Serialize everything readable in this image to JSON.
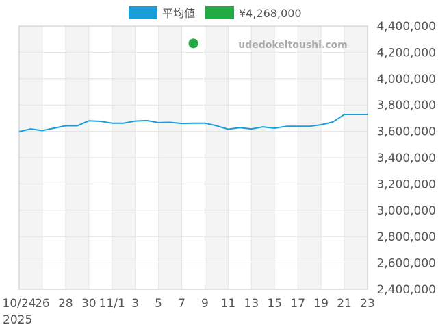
{
  "chart_data": {
    "type": "line",
    "title": "",
    "xlabel": "",
    "ylabel": "",
    "watermark": "udedokeitoushi.com",
    "legend_position": "top-center",
    "grid": true,
    "ylim": [
      2400000,
      4400000
    ],
    "y_ticks": [
      2400000,
      2600000,
      2800000,
      3000000,
      3200000,
      3400000,
      3600000,
      3800000,
      4000000,
      4200000,
      4400000
    ],
    "y_tick_labels": [
      "2,400,000",
      "2,600,000",
      "2,800,000",
      "3,000,000",
      "3,200,000",
      "3,400,000",
      "3,600,000",
      "3,800,000",
      "4,000,000",
      "4,200,000",
      "4,400,000"
    ],
    "x": [
      "2025-10-24",
      "2025-10-25",
      "2025-10-26",
      "2025-10-27",
      "2025-10-28",
      "2025-10-29",
      "2025-10-30",
      "2025-10-31",
      "2025-11-01",
      "2025-11-02",
      "2025-11-03",
      "2025-11-04",
      "2025-11-05",
      "2025-11-06",
      "2025-11-07",
      "2025-11-08",
      "2025-11-09",
      "2025-11-10",
      "2025-11-11",
      "2025-11-12",
      "2025-11-13",
      "2025-11-14",
      "2025-11-15",
      "2025-11-16",
      "2025-11-17",
      "2025-11-18",
      "2025-11-19",
      "2025-11-20",
      "2025-11-21",
      "2025-11-22",
      "2025-11-23"
    ],
    "x_tick_labels": [
      "10/24",
      "26",
      "28",
      "30",
      "11/1",
      "3",
      "5",
      "7",
      "9",
      "11",
      "13",
      "15",
      "17",
      "19",
      "21",
      "23"
    ],
    "x_tick_indices": [
      0,
      2,
      4,
      6,
      8,
      10,
      12,
      14,
      16,
      18,
      20,
      22,
      24,
      26,
      28,
      30
    ],
    "year_label": "2025",
    "series": [
      {
        "name": "平均値",
        "color": "#1a9edb",
        "type": "line",
        "values": [
          3598000,
          3618000,
          3606000,
          3624000,
          3642000,
          3642000,
          3680000,
          3676000,
          3662000,
          3662000,
          3678000,
          3682000,
          3666000,
          3668000,
          3660000,
          3662000,
          3662000,
          3642000,
          3616000,
          3628000,
          3618000,
          3634000,
          3624000,
          3638000,
          3638000,
          3638000,
          3650000,
          3670000,
          3728000,
          3728000,
          3728000
        ]
      },
      {
        "name": "¥4,268,000",
        "color": "#22aa44",
        "type": "scatter",
        "points": [
          {
            "x": "2025-11-08",
            "y": 4268000
          }
        ]
      }
    ]
  }
}
